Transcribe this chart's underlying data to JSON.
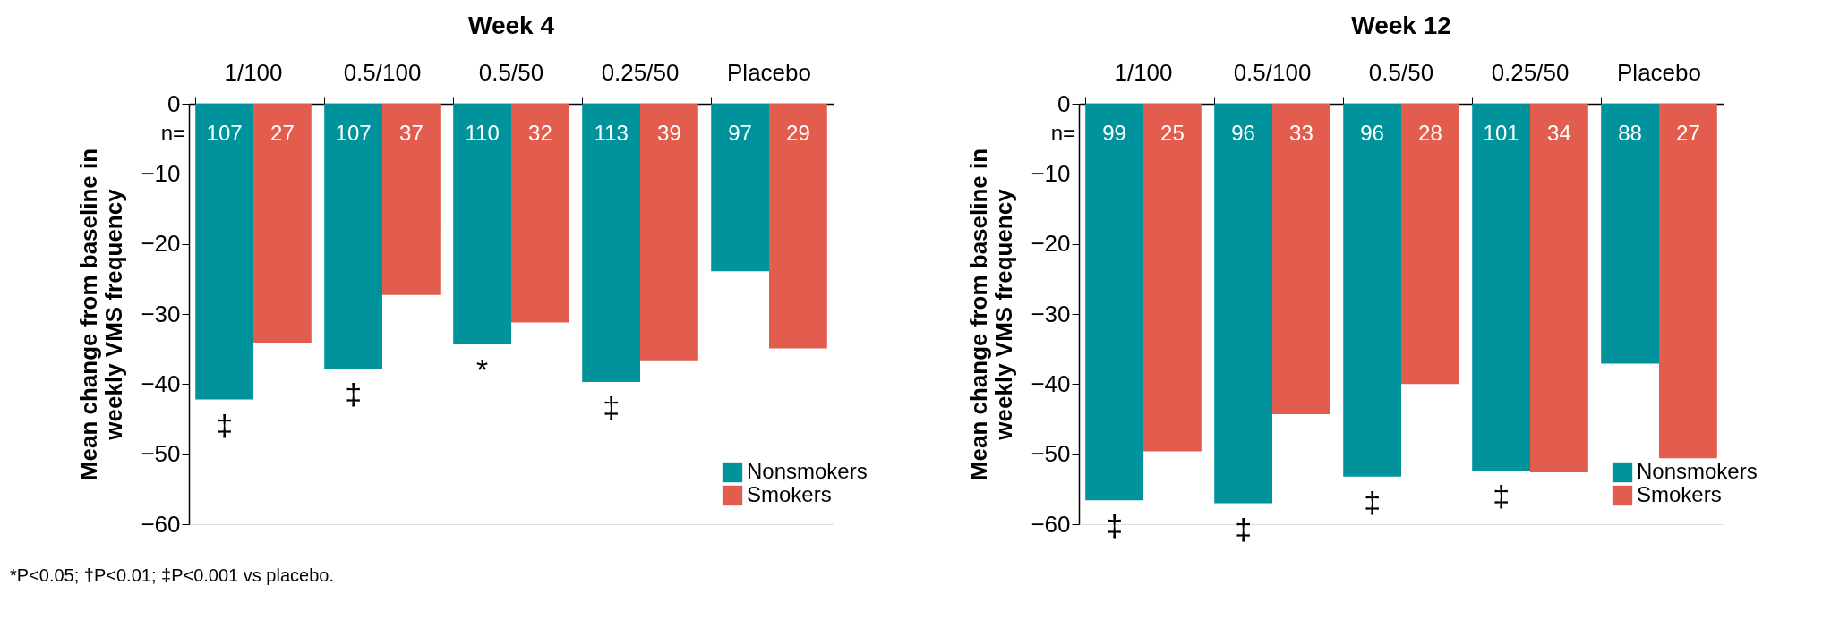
{
  "chart_data": [
    {
      "type": "bar",
      "title": "Week 4",
      "ylabel": "Mean change from baseline in weekly VMS frequency",
      "categories": [
        "1/100",
        "0.5/100",
        "0.5/50",
        "0.25/50",
        "Placebo"
      ],
      "series": [
        {
          "name": "Nonsmokers",
          "color": "#00939b",
          "values": [
            -42.2,
            -37.8,
            -34.3,
            -39.7,
            -23.9
          ]
        },
        {
          "name": "Smokers",
          "color": "#e35d4f",
          "values": [
            -34.1,
            -27.3,
            -31.2,
            -36.6,
            -34.9
          ]
        }
      ],
      "ylim": [
        -60,
        0
      ],
      "yticks": [
        -60,
        -50,
        -40,
        -30,
        -20,
        -10,
        0
      ],
      "grid": false,
      "legend": "bottom right",
      "annotations": [
        "n=",
        "107",
        "107",
        "110",
        "113",
        "97",
        "27",
        "37",
        "32",
        "39",
        "29",
        "‡",
        "‡",
        "*",
        "‡",
        "*P<0.05; †P<0.01; ‡P<0.001 vs placebo."
      ]
    },
    {
      "type": "bar",
      "title": "Week 12",
      "ylabel": "Mean change from baseline in weekly VMS frequency",
      "categories": [
        "1/100",
        "0.5/100",
        "0.5/50",
        "0.25/50",
        "Placebo"
      ],
      "series": [
        {
          "name": "Nonsmokers",
          "color": "#00939b",
          "values": [
            -56.6,
            -57.0,
            -53.2,
            -52.4,
            -37.1
          ]
        },
        {
          "name": "Smokers",
          "color": "#e35d4f",
          "values": [
            -49.6,
            -44.3,
            -40.0,
            -52.6,
            -50.6
          ]
        }
      ],
      "ylim": [
        -60,
        0
      ],
      "yticks": [
        -60,
        -50,
        -40,
        -30,
        -20,
        -10,
        0
      ],
      "grid": false,
      "legend": "bottom right",
      "annotations": [
        "n=",
        "99",
        "96",
        "96",
        "101",
        "88",
        "25",
        "33",
        "28",
        "34",
        "27",
        "‡",
        "‡",
        "‡",
        "‡"
      ]
    }
  ]
}
